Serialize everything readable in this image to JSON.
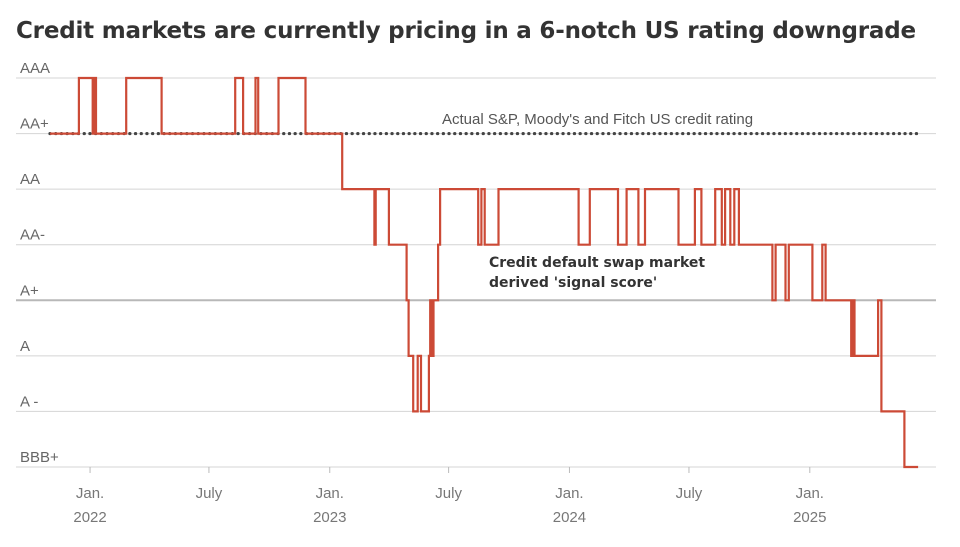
{
  "title": "Credit markets are currently pricing in a 6-notch US rating downgrade",
  "chart_data": {
    "type": "line",
    "step": true,
    "y_categories": [
      "BBB+",
      "A -",
      "A",
      "A+",
      "AA-",
      "AA",
      "AA+",
      "AAA"
    ],
    "x_start": "2021-11-01",
    "x_end": "2025-06-30",
    "x_ticks": [
      {
        "date": "2022-01-01",
        "line1": "Jan.",
        "line2": "2022"
      },
      {
        "date": "2022-07-01",
        "line1": "July",
        "line2": ""
      },
      {
        "date": "2023-01-01",
        "line1": "Jan.",
        "line2": "2023"
      },
      {
        "date": "2023-07-01",
        "line1": "July",
        "line2": ""
      },
      {
        "date": "2024-01-01",
        "line1": "Jan.",
        "line2": "2024"
      },
      {
        "date": "2024-07-01",
        "line1": "July",
        "line2": ""
      },
      {
        "date": "2025-01-01",
        "line1": "Jan.",
        "line2": "2025"
      }
    ],
    "series": [
      {
        "name": "Actual S&P, Moody's and Fitch US credit rating",
        "style": "dotted",
        "color": "#444444",
        "points": [
          [
            "2021-11-01",
            "AA+"
          ],
          [
            "2025-06-15",
            "AA+"
          ]
        ]
      },
      {
        "name": "Credit default swap market derived 'signal score'",
        "style": "step",
        "color": "#cc4a36",
        "points": [
          [
            "2021-11-01",
            "AA+"
          ],
          [
            "2021-12-15",
            "AAA"
          ],
          [
            "2022-01-05",
            "AA+"
          ],
          [
            "2022-01-08",
            "AAA"
          ],
          [
            "2022-01-10",
            "AA+"
          ],
          [
            "2022-02-25",
            "AAA"
          ],
          [
            "2022-04-20",
            "AA+"
          ],
          [
            "2022-08-10",
            "AAA"
          ],
          [
            "2022-08-22",
            "AA+"
          ],
          [
            "2022-09-10",
            "AAA"
          ],
          [
            "2022-09-14",
            "AA+"
          ],
          [
            "2022-10-15",
            "AAA"
          ],
          [
            "2022-11-25",
            "AA+"
          ],
          [
            "2023-01-20",
            "AA"
          ],
          [
            "2023-03-10",
            "AA-"
          ],
          [
            "2023-03-12",
            "AA"
          ],
          [
            "2023-04-01",
            "AA-"
          ],
          [
            "2023-04-28",
            "A+"
          ],
          [
            "2023-05-01",
            "A"
          ],
          [
            "2023-05-08",
            "A -"
          ],
          [
            "2023-05-15",
            "A"
          ],
          [
            "2023-05-20",
            "A -"
          ],
          [
            "2023-06-01",
            "A"
          ],
          [
            "2023-06-03",
            "A+"
          ],
          [
            "2023-06-06",
            "A"
          ],
          [
            "2023-06-08",
            "A+"
          ],
          [
            "2023-06-15",
            "AA-"
          ],
          [
            "2023-06-18",
            "AA"
          ],
          [
            "2023-08-15",
            "AA-"
          ],
          [
            "2023-08-20",
            "AA"
          ],
          [
            "2023-08-25",
            "AA-"
          ],
          [
            "2023-09-15",
            "AA"
          ],
          [
            "2024-01-15",
            "AA-"
          ],
          [
            "2024-02-01",
            "AA"
          ],
          [
            "2024-03-15",
            "AA-"
          ],
          [
            "2024-03-28",
            "AA"
          ],
          [
            "2024-04-15",
            "AA-"
          ],
          [
            "2024-04-25",
            "AA"
          ],
          [
            "2024-06-15",
            "AA-"
          ],
          [
            "2024-07-10",
            "AA"
          ],
          [
            "2024-07-20",
            "AA-"
          ],
          [
            "2024-08-10",
            "AA"
          ],
          [
            "2024-08-20",
            "AA-"
          ],
          [
            "2024-08-25",
            "AA"
          ],
          [
            "2024-09-02",
            "AA-"
          ],
          [
            "2024-09-08",
            "AA"
          ],
          [
            "2024-09-15",
            "AA-"
          ],
          [
            "2024-11-05",
            "A+"
          ],
          [
            "2024-11-10",
            "AA-"
          ],
          [
            "2024-11-25",
            "A+"
          ],
          [
            "2024-11-30",
            "AA-"
          ],
          [
            "2025-01-05",
            "A+"
          ],
          [
            "2025-01-20",
            "AA-"
          ],
          [
            "2025-01-25",
            "A+"
          ],
          [
            "2025-03-05",
            "A"
          ],
          [
            "2025-03-08",
            "A+"
          ],
          [
            "2025-03-10",
            "A"
          ],
          [
            "2025-04-15",
            "A+"
          ],
          [
            "2025-04-20",
            "A -"
          ],
          [
            "2025-05-25",
            "BBB+"
          ],
          [
            "2025-06-15",
            "BBB+"
          ]
        ]
      }
    ],
    "annotations": [
      {
        "series": 0,
        "lines": [
          "Actual S&P, Moody's and Fitch US credit rating"
        ],
        "style": "regular"
      },
      {
        "series": 1,
        "lines": [
          "Credit default swap market",
          "derived 'signal score'"
        ],
        "style": "bold"
      }
    ],
    "grid": true,
    "legend": "inline annotations"
  }
}
